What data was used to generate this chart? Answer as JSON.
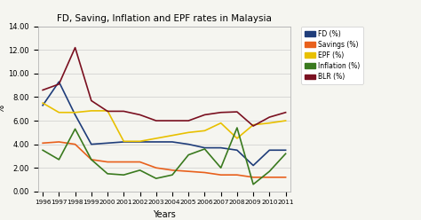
{
  "title": "FD, Saving, Inflation and EPF rates in Malaysia",
  "xlabel": "Years",
  "ylabel": "%",
  "years": [
    1996,
    1997,
    1998,
    1999,
    2000,
    2001,
    2002,
    2003,
    2004,
    2005,
    2006,
    2007,
    2008,
    2009,
    2010,
    2011
  ],
  "series": {
    "FD (%)": [
      7.3,
      9.3,
      6.5,
      4.0,
      4.1,
      4.2,
      4.2,
      4.2,
      4.2,
      4.0,
      3.7,
      3.7,
      3.5,
      2.2,
      3.5,
      3.5
    ],
    "Savings (%)": [
      4.1,
      4.2,
      4.0,
      2.7,
      2.5,
      2.5,
      2.5,
      2.0,
      1.8,
      1.7,
      1.6,
      1.4,
      1.4,
      1.2,
      1.2,
      1.2
    ],
    "EPF (%)": [
      7.5,
      6.7,
      6.7,
      6.84,
      6.84,
      4.25,
      4.25,
      4.5,
      4.75,
      5.0,
      5.15,
      5.8,
      4.5,
      5.65,
      5.8,
      6.0
    ],
    "Inflation (%)": [
      3.5,
      2.7,
      5.3,
      2.7,
      1.5,
      1.4,
      1.8,
      1.1,
      1.4,
      3.1,
      3.6,
      2.0,
      5.4,
      0.6,
      1.7,
      3.2
    ],
    "BLR (%)": [
      8.6,
      9.1,
      12.2,
      7.7,
      6.8,
      6.8,
      6.5,
      6.0,
      6.0,
      6.0,
      6.5,
      6.7,
      6.75,
      5.55,
      6.3,
      6.7
    ]
  },
  "colors": {
    "FD (%)": "#1f3d7a",
    "Savings (%)": "#e8601c",
    "EPF (%)": "#e8c000",
    "Inflation (%)": "#3a7a1f",
    "BLR (%)": "#7a1020"
  },
  "ylim": [
    0,
    14.0
  ],
  "yticks": [
    0.0,
    2.0,
    4.0,
    6.0,
    8.0,
    10.0,
    12.0,
    14.0
  ],
  "background_color": "#f5f5f0",
  "plot_bg_color": "#f5f5f0",
  "grid_color": "#cccccc"
}
